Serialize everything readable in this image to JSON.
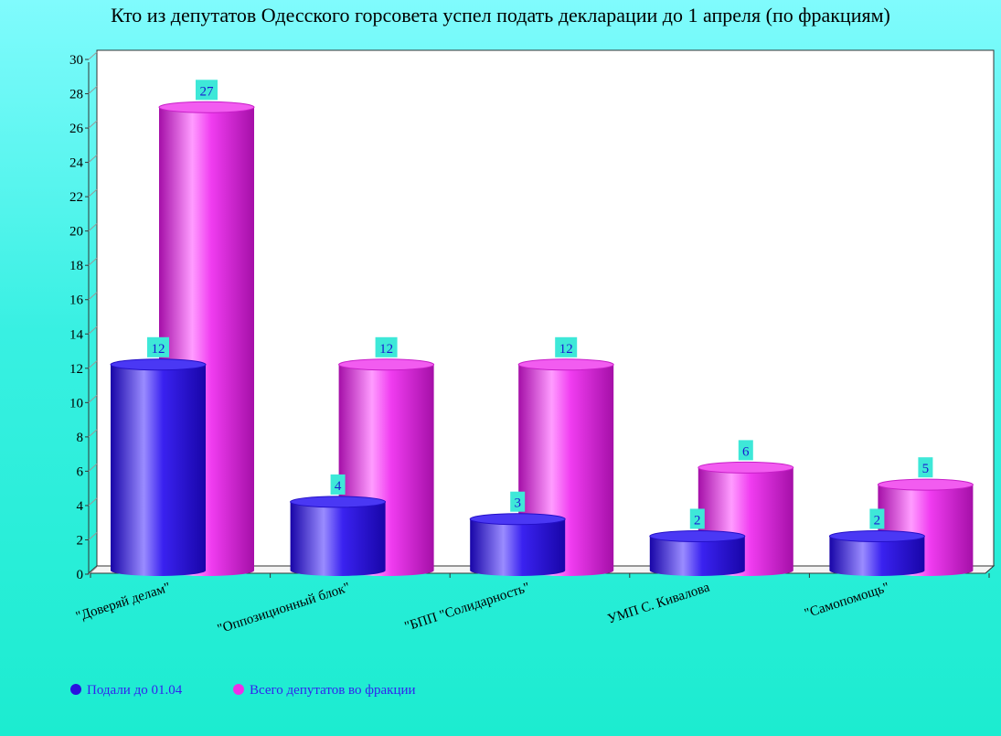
{
  "colors": {
    "series_1": "#2a10e0",
    "series_2": "#ee30e8",
    "label_bg": "#3ee8d8",
    "label_text": "#1a1ad0",
    "legend_text": "#3322ee"
  },
  "chart_data": {
    "type": "bar",
    "title": "Кто из депутатов Одесского горсовета успел подать декларации до 1 апреля (по фракциям)",
    "categories": [
      "\"Доверяй делам\"",
      "\"Оппозиционный блок\"",
      "\"БПП \"Солидарность\"",
      "УМП С. Кивалова",
      "\"Самопомощь\""
    ],
    "series": [
      {
        "name": "Подали до 01.04",
        "values": [
          12,
          4,
          3,
          2,
          2
        ]
      },
      {
        "name": "Всего депутатов во фракции",
        "values": [
          27,
          12,
          12,
          6,
          5
        ]
      }
    ],
    "xlabel": "",
    "ylabel": "",
    "ylim": [
      0,
      30
    ],
    "yticks": [
      0,
      2,
      4,
      6,
      8,
      10,
      12,
      14,
      16,
      18,
      20,
      22,
      24,
      26,
      28,
      30
    ],
    "grid": false,
    "legend_position": "bottom-left",
    "bar_style": "3d-cylinder"
  }
}
